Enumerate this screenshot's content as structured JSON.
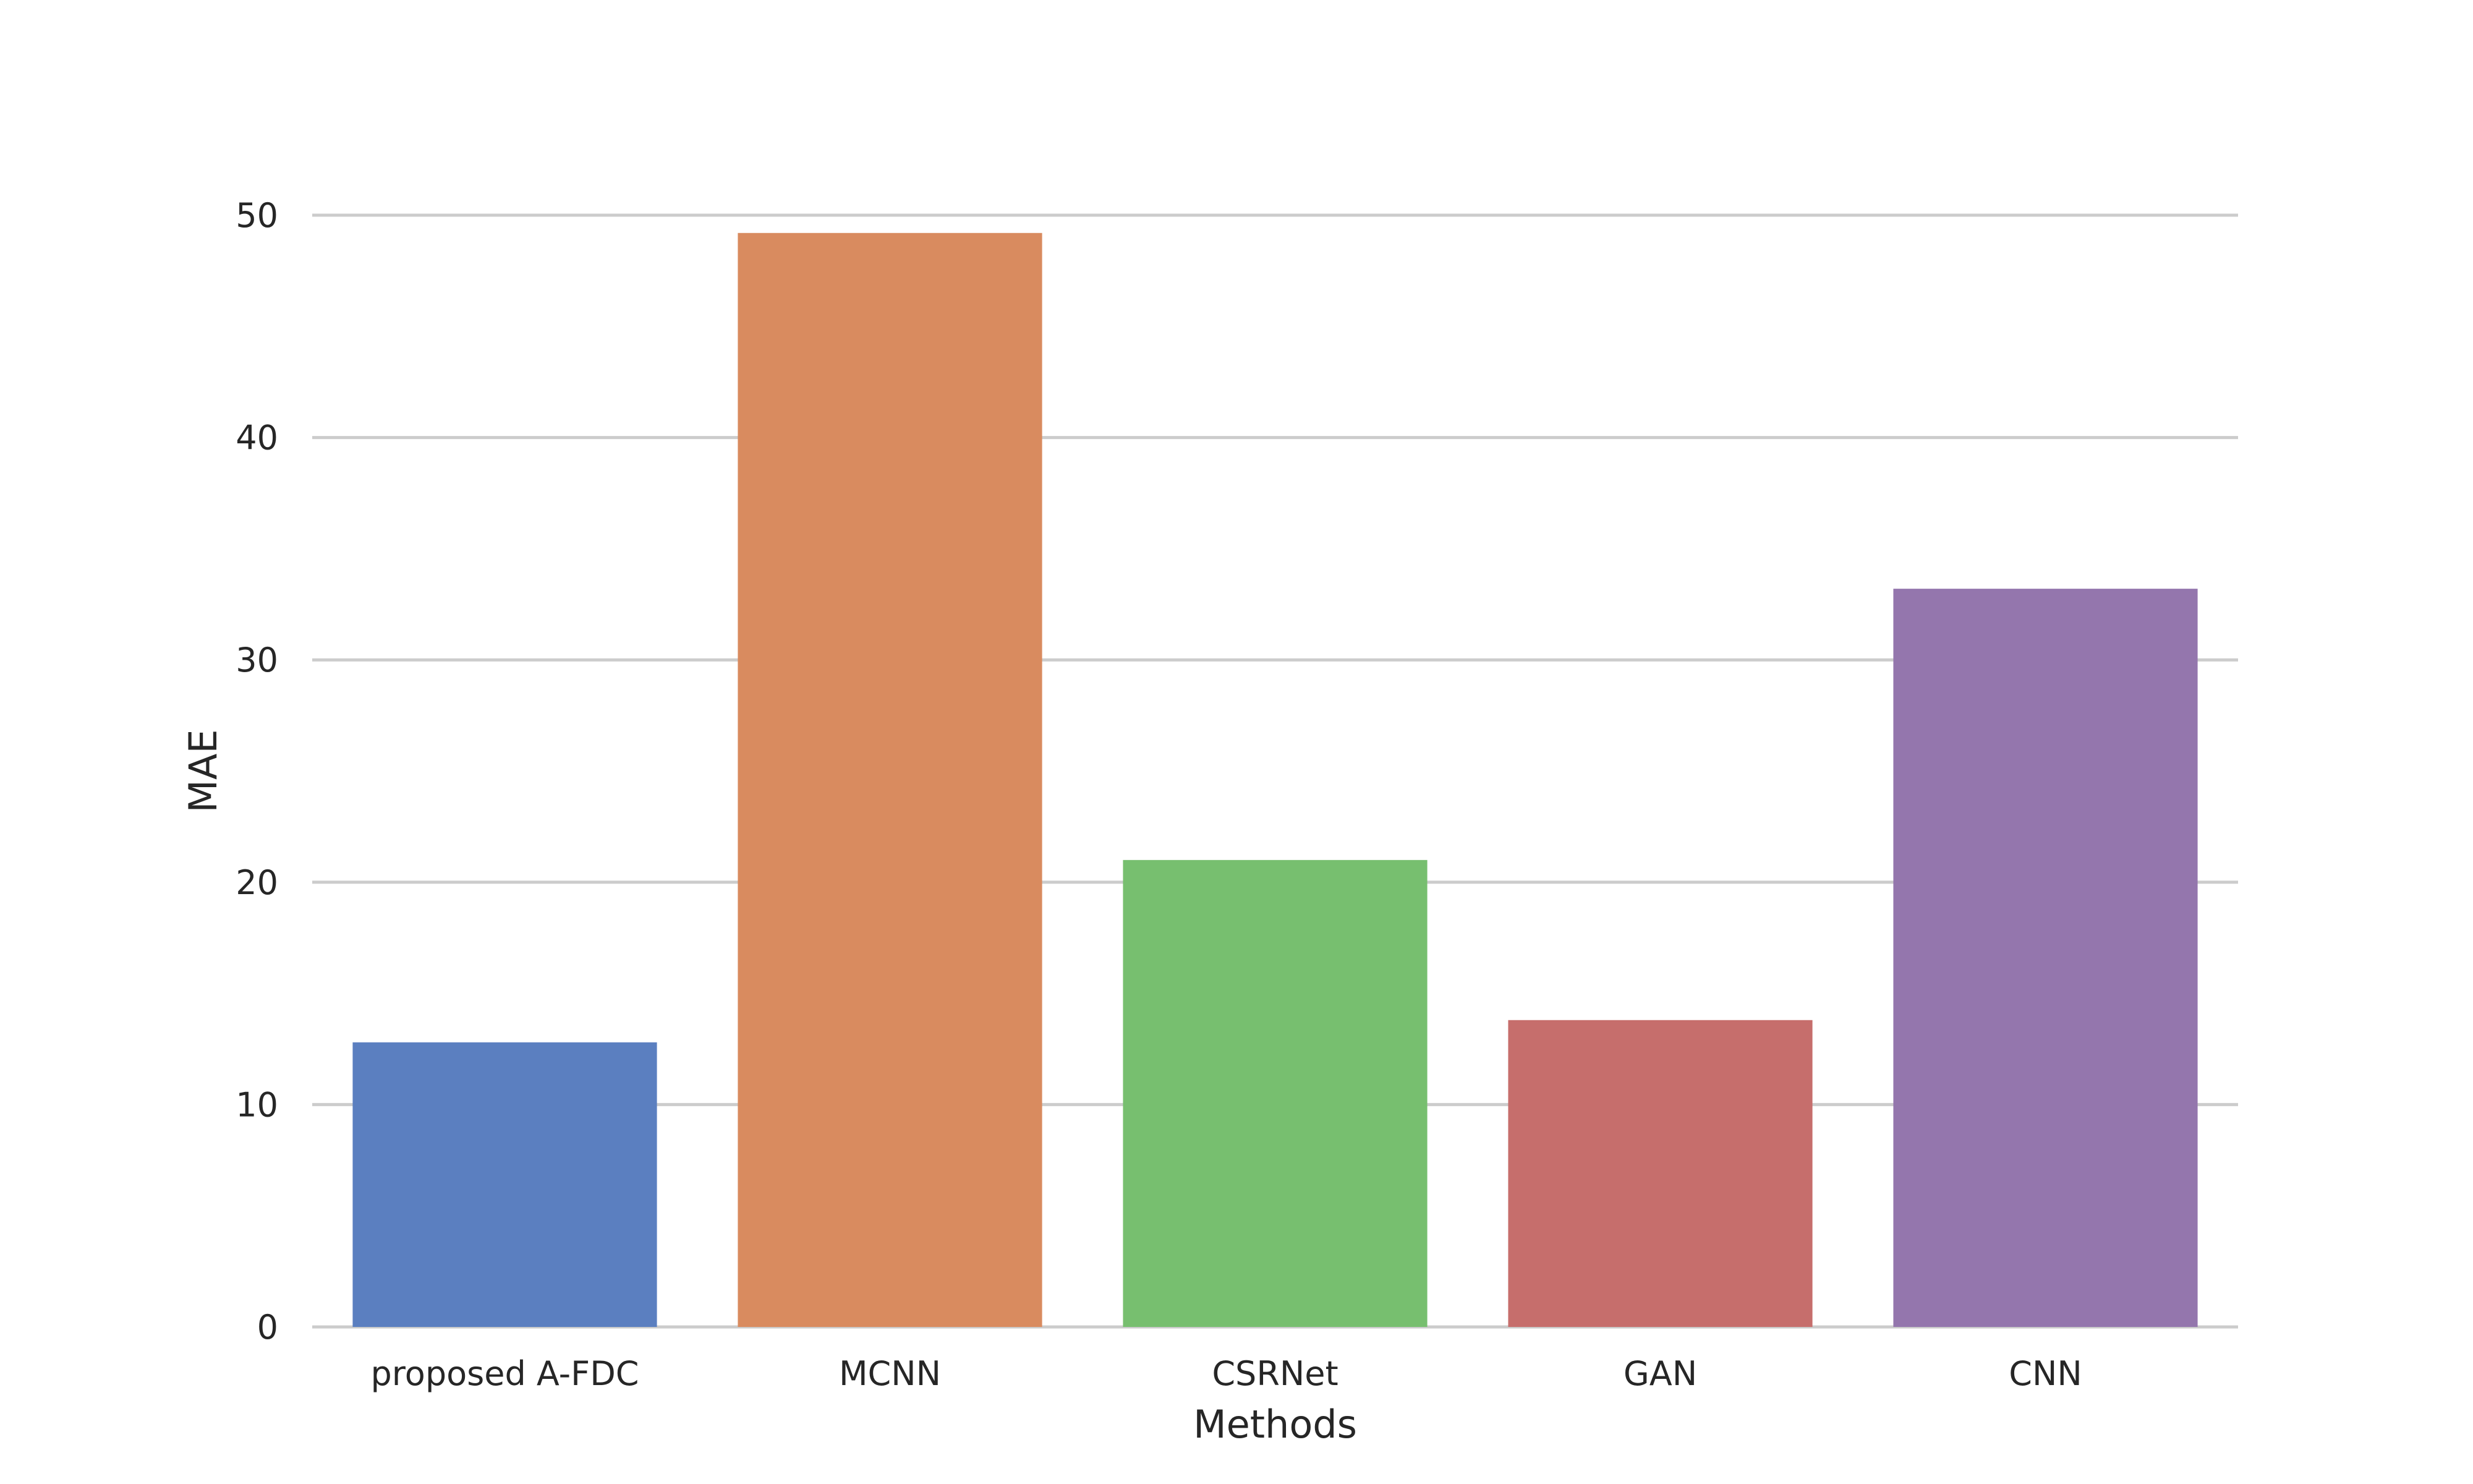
{
  "chart_data": {
    "type": "bar",
    "title": "",
    "xlabel": "Methods",
    "ylabel": "MAE",
    "categories": [
      "proposed A-FDC",
      "MCNN",
      "CSRNet",
      "GAN",
      "CNN"
    ],
    "values": [
      12.8,
      49.2,
      21.0,
      13.8,
      33.2
    ],
    "colors": [
      "#5b7fc0",
      "#d98b5f",
      "#77bf6f",
      "#c66e6c",
      "#9476ad"
    ],
    "ylim": [
      0,
      50
    ],
    "yticks": [
      0,
      10,
      20,
      30,
      40,
      50
    ],
    "grid": true,
    "legend": "none"
  }
}
